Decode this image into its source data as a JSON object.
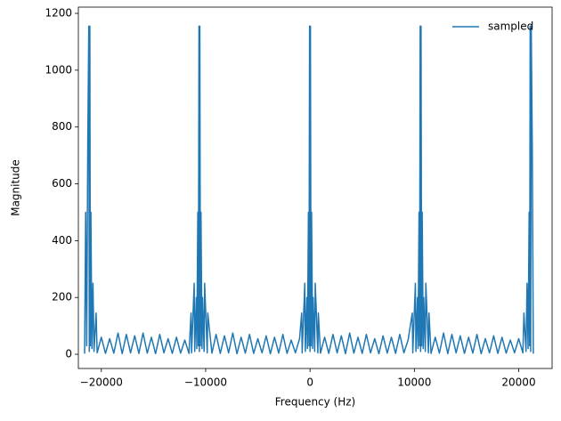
{
  "chart_data": {
    "type": "line",
    "xlabel": "Frequency (Hz)",
    "ylabel": "Magnitude",
    "xlim": [
      -22200,
      23200
    ],
    "ylim": [
      -50,
      1222
    ],
    "xticks": [
      {
        "value": -20000,
        "label": "−20000"
      },
      {
        "value": -10000,
        "label": "−10000"
      },
      0,
      10000,
      20000
    ],
    "yticks": [
      0,
      200,
      400,
      600,
      800,
      1000,
      1200
    ],
    "legend": "upper right",
    "x": [
      -21600,
      -21500,
      -21400,
      -21300,
      -21200,
      -21150,
      -21100,
      -21050,
      -21000,
      -20900,
      -20800,
      -20700,
      -20500,
      -20400,
      -20000,
      -19600,
      -19200,
      -18800,
      -18400,
      -18000,
      -17600,
      -17200,
      -16800,
      -16400,
      -16000,
      -15600,
      -15200,
      -14800,
      -14400,
      -14000,
      -13600,
      -13200,
      -12800,
      -12400,
      -12000,
      -11600,
      -11400,
      -11350,
      -11100,
      -11050,
      -10900,
      -10850,
      -10750,
      -10700,
      -10640,
      -10600,
      -10560,
      -10500,
      -10450,
      -10350,
      -10300,
      -10150,
      -10100,
      -9850,
      -9800,
      -9400,
      -9000,
      -8600,
      -8200,
      -7800,
      -7400,
      -7000,
      -6600,
      -6200,
      -5800,
      -5400,
      -5000,
      -4600,
      -4200,
      -3800,
      -3400,
      -3000,
      -2600,
      -2200,
      -1800,
      -1400,
      -1000,
      -800,
      -750,
      -500,
      -450,
      -300,
      -250,
      -150,
      -100,
      -40,
      0,
      40,
      100,
      150,
      250,
      300,
      450,
      500,
      750,
      800,
      1000,
      1400,
      1800,
      2200,
      2600,
      3000,
      3400,
      3800,
      4200,
      4600,
      5000,
      5400,
      5800,
      6200,
      6600,
      7000,
      7400,
      7800,
      8200,
      8600,
      9000,
      9400,
      9800,
      9850,
      10100,
      10150,
      10300,
      10350,
      10450,
      10500,
      10560,
      10600,
      10640,
      10700,
      10750,
      10850,
      10900,
      11050,
      11100,
      11350,
      11400,
      11600,
      12000,
      12400,
      12800,
      13200,
      13600,
      14000,
      14400,
      14800,
      15200,
      15600,
      16000,
      16400,
      16800,
      17200,
      17600,
      18000,
      18400,
      18800,
      19200,
      19600,
      20000,
      20400,
      20500,
      20700,
      20800,
      20900,
      21000,
      21050,
      21100,
      21150,
      21200,
      21300,
      21400
    ],
    "series": [
      {
        "name": "sampled",
        "color": "#1f77b4",
        "values": [
          2,
          500,
          30,
          730,
          1155,
          10,
          1155,
          30,
          500,
          20,
          250,
          10,
          145,
          5,
          60,
          3,
          55,
          4,
          75,
          2,
          70,
          5,
          65,
          3,
          75,
          4,
          60,
          2,
          70,
          5,
          55,
          3,
          60,
          4,
          50,
          3,
          145,
          5,
          250,
          10,
          200,
          20,
          500,
          30,
          1155,
          10,
          1155,
          30,
          500,
          20,
          200,
          10,
          250,
          5,
          145,
          4,
          70,
          3,
          65,
          5,
          75,
          2,
          60,
          4,
          70,
          3,
          55,
          5,
          65,
          2,
          60,
          4,
          70,
          3,
          50,
          5,
          55,
          145,
          5,
          250,
          10,
          200,
          20,
          500,
          30,
          1155,
          10,
          1155,
          30,
          500,
          20,
          200,
          10,
          250,
          5,
          145,
          4,
          60,
          3,
          70,
          5,
          65,
          2,
          75,
          4,
          60,
          3,
          70,
          5,
          55,
          2,
          65,
          4,
          60,
          3,
          70,
          5,
          50,
          145,
          5,
          250,
          10,
          200,
          20,
          500,
          30,
          1155,
          10,
          1155,
          30,
          500,
          20,
          200,
          10,
          250,
          5,
          145,
          3,
          60,
          4,
          75,
          2,
          70,
          5,
          65,
          3,
          60,
          4,
          70,
          2,
          55,
          5,
          65,
          3,
          60,
          4,
          50,
          5,
          55,
          5,
          145,
          10,
          250,
          20,
          500,
          30,
          1155,
          10,
          1155,
          730,
          2
        ]
      }
    ]
  }
}
